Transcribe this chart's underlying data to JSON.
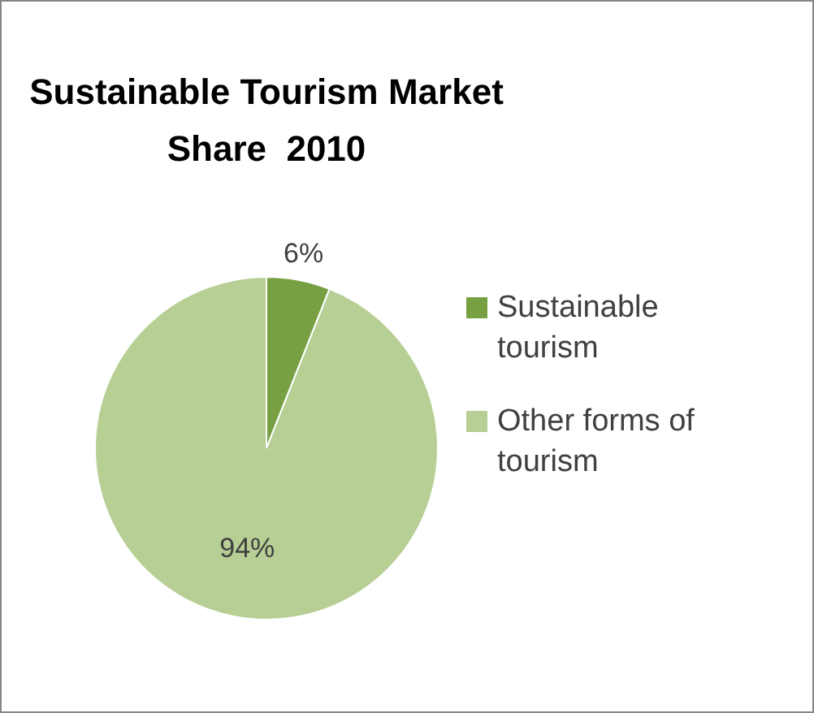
{
  "chart_data": {
    "type": "pie",
    "title": "Sustainable Tourism Market Share  2010",
    "categories": [
      "Sustainable tourism",
      "Other forms of tourism"
    ],
    "values": [
      6,
      94
    ],
    "colors": [
      "#77a043",
      "#b7cf94"
    ],
    "value_labels": [
      "6%",
      "94%"
    ],
    "legend": "right"
  }
}
